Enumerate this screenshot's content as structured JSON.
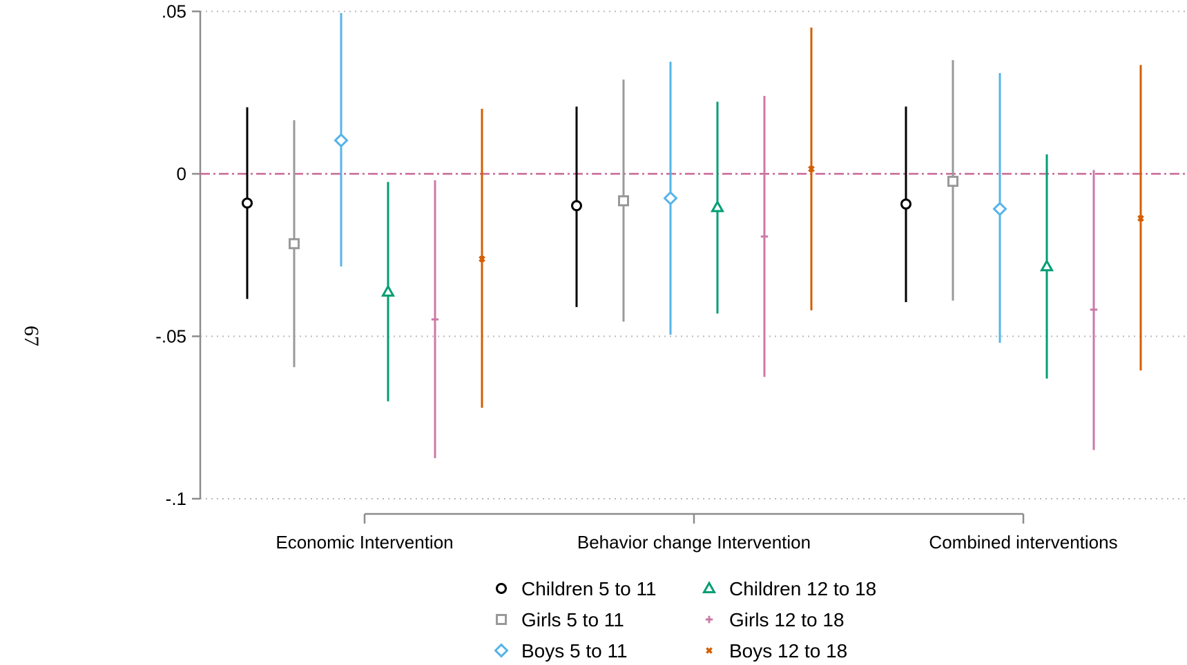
{
  "page_number": "67",
  "chart_data": {
    "type": "scatter",
    "subtype": "coefficient plot with confidence intervals",
    "title": "",
    "xlabel": "",
    "ylabel": "",
    "ylim": [
      -0.1,
      0.05
    ],
    "yticks": [
      {
        "value": 0.05,
        "label": ".05"
      },
      {
        "value": 0,
        "label": "0"
      },
      {
        "value": -0.05,
        "label": "-.05"
      },
      {
        "value": -0.1,
        "label": "-.1"
      }
    ],
    "grid": "horizontal dotted",
    "reference_line": {
      "y": 0,
      "style": "dashed",
      "color": "#c86495"
    },
    "legend_position": "bottom",
    "groups": [
      "Economic Intervention",
      "Behavior change Intervention",
      "Combined interventions"
    ],
    "series": [
      {
        "name": "Children 5 to 11",
        "color": "#000000",
        "marker": "circle",
        "estimates": [
          -0.009,
          -0.0098,
          -0.0093
        ],
        "ci_low": [
          -0.0385,
          -0.041,
          -0.0395
        ],
        "ci_high": [
          0.0205,
          0.0207,
          0.0207
        ]
      },
      {
        "name": "Girls 5 to 11",
        "color": "#999999",
        "marker": "square",
        "estimates": [
          -0.0215,
          -0.0083,
          -0.0023
        ],
        "ci_low": [
          -0.0595,
          -0.0455,
          -0.039
        ],
        "ci_high": [
          0.0165,
          0.029,
          0.035
        ]
      },
      {
        "name": "Boys 5 to 11",
        "color": "#56b4e9",
        "marker": "diamond",
        "estimates": [
          0.0103,
          -0.0075,
          -0.0108
        ],
        "ci_low": [
          -0.0285,
          -0.0495,
          -0.052
        ],
        "ci_high": [
          0.0495,
          0.0345,
          0.031
        ]
      },
      {
        "name": "Children 12 to 18",
        "color": "#009e73",
        "marker": "triangle",
        "estimates": [
          -0.0363,
          -0.0103,
          -0.0285
        ],
        "ci_low": [
          -0.07,
          -0.043,
          -0.063
        ],
        "ci_high": [
          -0.0025,
          0.0222,
          0.006
        ]
      },
      {
        "name": "Girls 12 to 18",
        "color": "#cc79a7",
        "marker": "plus",
        "estimates": [
          -0.0448,
          -0.0193,
          -0.0418
        ],
        "ci_low": [
          -0.0875,
          -0.0625,
          -0.085
        ],
        "ci_high": [
          -0.002,
          0.024,
          0.0012
        ]
      },
      {
        "name": "Boys 12 to 18",
        "color": "#d55e00",
        "marker": "x",
        "estimates": [
          -0.0262,
          0.0015,
          -0.0137
        ],
        "ci_low": [
          -0.072,
          -0.042,
          -0.0605
        ],
        "ci_high": [
          0.02,
          0.045,
          0.0335
        ]
      }
    ]
  }
}
